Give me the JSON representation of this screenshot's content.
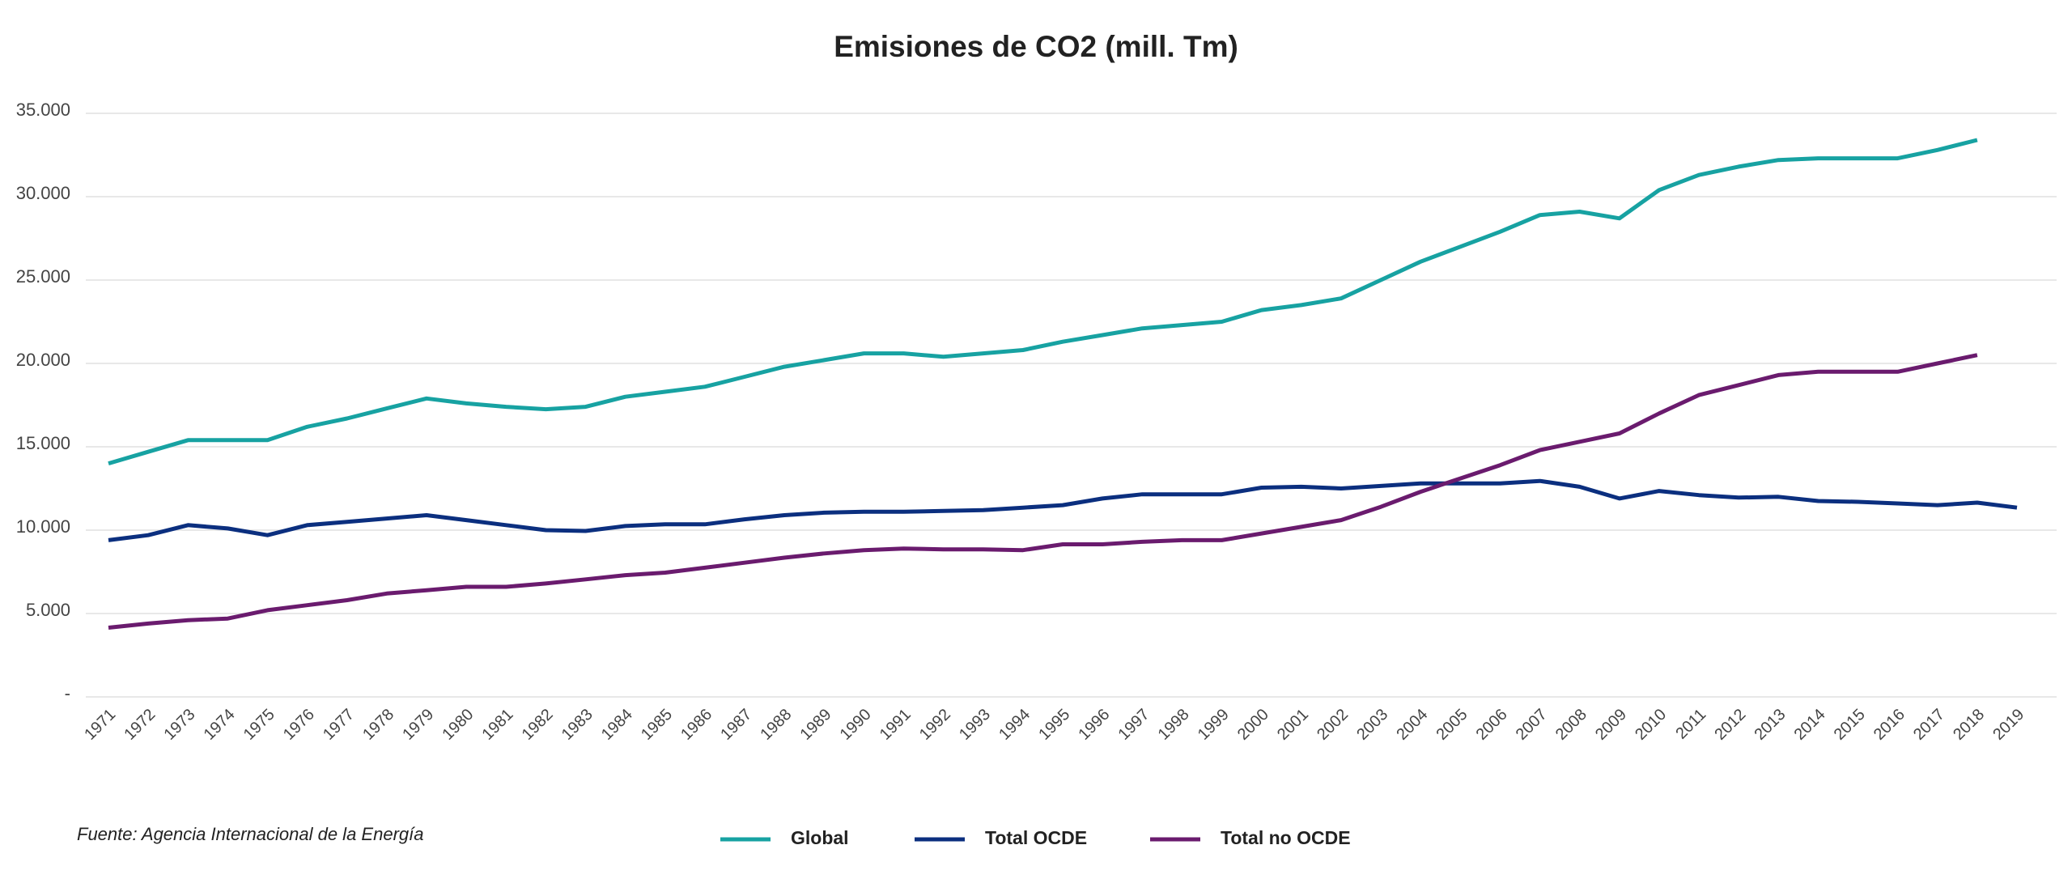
{
  "chart_data": {
    "type": "line",
    "title": "Emisiones de CO2 (mill. Tm)",
    "source": "Fuente: Agencia Internacional de la Energía",
    "categories": [
      "1971",
      "1972",
      "1973",
      "1974",
      "1975",
      "1976",
      "1977",
      "1978",
      "1979",
      "1980",
      "1981",
      "1982",
      "1983",
      "1984",
      "1985",
      "1986",
      "1987",
      "1988",
      "1989",
      "1990",
      "1991",
      "1992",
      "1993",
      "1994",
      "1995",
      "1996",
      "1997",
      "1998",
      "1999",
      "2000",
      "2001",
      "2002",
      "2003",
      "2004",
      "2005",
      "2006",
      "2007",
      "2008",
      "2009",
      "2010",
      "2011",
      "2012",
      "2013",
      "2014",
      "2015",
      "2016",
      "2017",
      "2018",
      "2019"
    ],
    "series": [
      {
        "name": "Global",
        "color": "#17a2a2",
        "values": [
          14000,
          14700,
          15400,
          15400,
          15400,
          16200,
          16700,
          17300,
          17900,
          17600,
          17400,
          17250,
          17400,
          18000,
          18300,
          18600,
          19200,
          19800,
          20200,
          20600,
          20600,
          20400,
          20600,
          20800,
          21300,
          21700,
          22100,
          22300,
          22500,
          23200,
          23500,
          23900,
          25000,
          26100,
          27000,
          27900,
          28900,
          29100,
          28700,
          30400,
          31300,
          31800,
          32200,
          32300,
          32300,
          32300,
          32800,
          33400,
          null
        ]
      },
      {
        "name": "Total OCDE",
        "color": "#0b2f7f",
        "values": [
          9400,
          9700,
          10300,
          10100,
          9700,
          10300,
          10500,
          10700,
          10900,
          10600,
          10300,
          10000,
          9950,
          10250,
          10350,
          10350,
          10650,
          10900,
          11050,
          11100,
          11100,
          11150,
          11200,
          11350,
          11500,
          11900,
          12150,
          12150,
          12150,
          12550,
          12600,
          12500,
          12650,
          12800,
          12800,
          12800,
          12950,
          12600,
          11900,
          12350,
          12100,
          11950,
          12000,
          11750,
          11700,
          11600,
          11500,
          11650,
          11350
        ]
      },
      {
        "name": "Total no OCDE",
        "color": "#6a1b6e",
        "values": [
          4150,
          4400,
          4600,
          4700,
          5200,
          5500,
          5800,
          6200,
          6400,
          6600,
          6600,
          6800,
          7050,
          7300,
          7450,
          7750,
          8050,
          8350,
          8600,
          8800,
          8900,
          8850,
          8850,
          8800,
          9150,
          9150,
          9300,
          9400,
          9400,
          9800,
          10200,
          10600,
          11400,
          12300,
          13100,
          13900,
          14800,
          15300,
          15800,
          17000,
          18100,
          18700,
          19300,
          19500,
          19500,
          19500,
          20000,
          20500,
          null
        ]
      }
    ],
    "ylim": [
      0,
      35000
    ],
    "yticks": [
      {
        "value": 0,
        "label": "-"
      },
      {
        "value": 5000,
        "label": "5.000"
      },
      {
        "value": 10000,
        "label": "10.000"
      },
      {
        "value": 15000,
        "label": "15.000"
      },
      {
        "value": 20000,
        "label": "20.000"
      },
      {
        "value": 25000,
        "label": "25.000"
      },
      {
        "value": 30000,
        "label": "30.000"
      },
      {
        "value": 35000,
        "label": "35.000"
      }
    ],
    "grid": true,
    "legend": "bottom"
  }
}
